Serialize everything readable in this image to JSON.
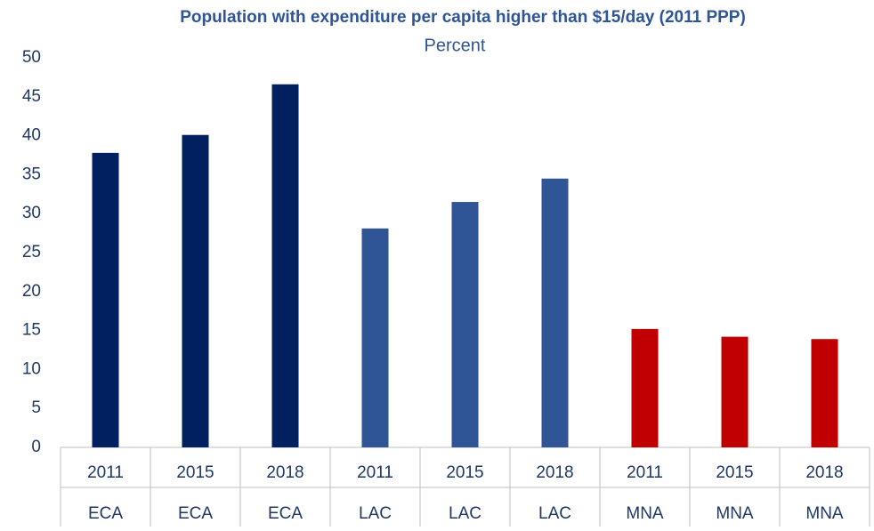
{
  "chart_data": {
    "type": "bar",
    "title": "Population with expenditure per capita higher than $15/day (2011 PPP)",
    "subtitle": "Percent",
    "categories": [
      "2011",
      "2015",
      "2018",
      "2011",
      "2015",
      "2018",
      "2011",
      "2015",
      "2018"
    ],
    "groups": [
      "ECA",
      "ECA",
      "ECA",
      "LAC",
      "LAC",
      "LAC",
      "MNA",
      "MNA",
      "MNA"
    ],
    "values": [
      37.8,
      40.1,
      46.6,
      28.1,
      31.5,
      34.5,
      15.2,
      14.2,
      13.9
    ],
    "colors": [
      "#002060",
      "#002060",
      "#002060",
      "#2f5597",
      "#2f5597",
      "#2f5597",
      "#c00000",
      "#c00000",
      "#c00000"
    ],
    "ylim": [
      0,
      50
    ],
    "yticks": [
      0,
      5,
      10,
      15,
      20,
      25,
      30,
      35,
      40,
      45,
      50
    ],
    "grid": false
  }
}
